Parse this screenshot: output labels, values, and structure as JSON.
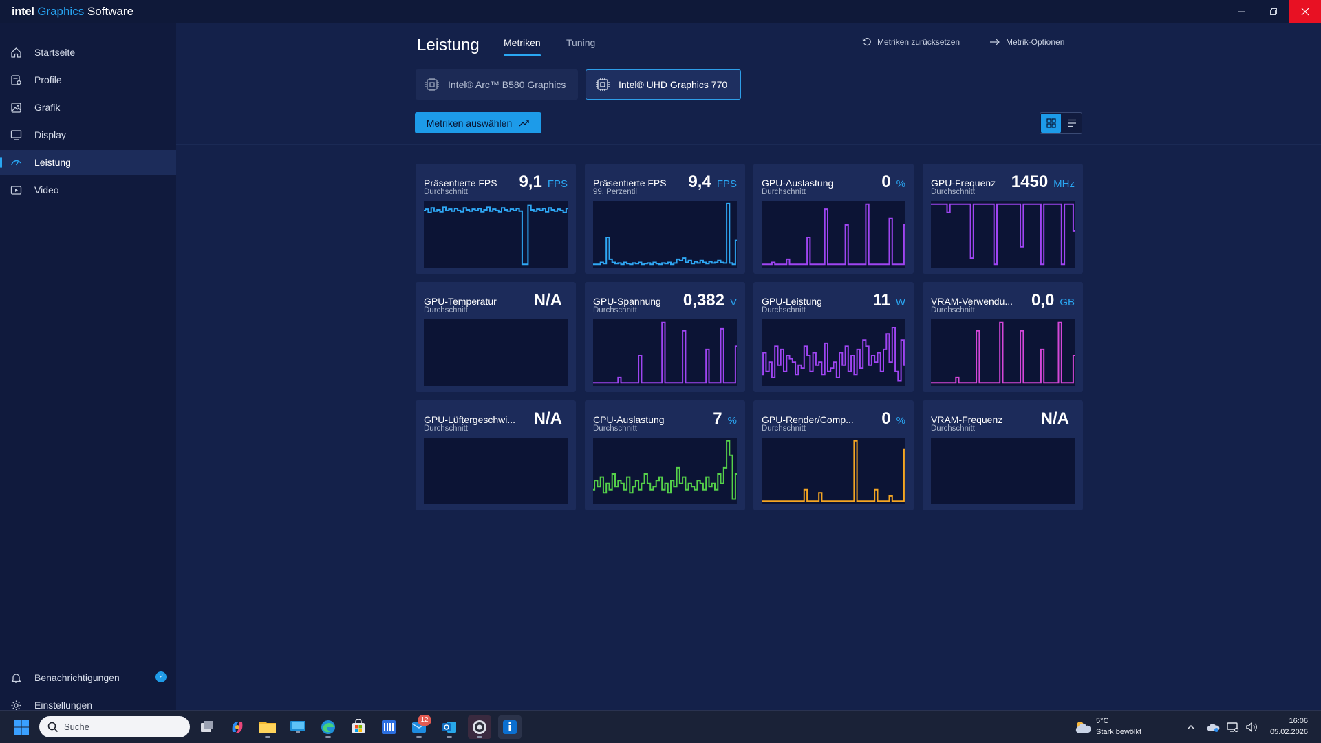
{
  "app": {
    "logo": "intel",
    "title_graphics": "Graphics",
    "title_software": "Software"
  },
  "sidebar": {
    "items": [
      {
        "label": "Startseite",
        "icon": "home-icon"
      },
      {
        "label": "Profile",
        "icon": "profile-icon"
      },
      {
        "label": "Grafik",
        "icon": "graphics-icon"
      },
      {
        "label": "Display",
        "icon": "display-icon"
      },
      {
        "label": "Leistung",
        "icon": "performance-icon",
        "active": true
      },
      {
        "label": "Video",
        "icon": "video-icon"
      }
    ],
    "notifications_label": "Benachrichtigungen",
    "notifications_count": "2",
    "settings_label": "Einstellungen"
  },
  "header": {
    "title": "Leistung",
    "tabs": [
      {
        "label": "Metriken",
        "active": true
      },
      {
        "label": "Tuning"
      }
    ],
    "reset_label": "Metriken zurücksetzen",
    "options_label": "Metrik-Optionen"
  },
  "gpus": [
    {
      "label": "Intel® Arc™ B580 Graphics",
      "selected": false
    },
    {
      "label": "Intel® UHD Graphics 770",
      "selected": true
    }
  ],
  "select_metrics_label": "Metriken auswählen",
  "colors": {
    "accent": "#29a6f2",
    "fps_line": "#2fa8f5",
    "purple_line": "#9f45f2",
    "magenta_line": "#d447d8",
    "green_line": "#55d14a",
    "orange_line": "#f5a623"
  },
  "metrics": [
    {
      "name": "Präsentierte FPS",
      "sub": "Durchschnitt",
      "value": "9,1",
      "unit": "FPS",
      "color": "#2fa8f5",
      "series": [
        0.88,
        0.9,
        0.85,
        0.92,
        0.87,
        0.89,
        0.86,
        0.93,
        0.88,
        0.9,
        0.87,
        0.91,
        0.88,
        0.86,
        0.92,
        0.89,
        0.87,
        0.9,
        0.88,
        0.91,
        0.86,
        0.89,
        0.93,
        0.87,
        0.9,
        0.88,
        0.86,
        0.92,
        0.89,
        0.87,
        0.9,
        0.88,
        0.91,
        0.87,
        0.02,
        0.02,
        0.96,
        0.89,
        0.87,
        0.9,
        0.88,
        0.91,
        0.86,
        0.92,
        0.89,
        0.87,
        0.9,
        0.88,
        0.85,
        0.91
      ]
    },
    {
      "name": "Präsentierte FPS",
      "sub": "99. Perzentil",
      "value": "9,4",
      "unit": "FPS",
      "color": "#2fa8f5",
      "series": [
        0.02,
        0.02,
        0.02,
        0.05,
        0.03,
        0.45,
        0.1,
        0.05,
        0.03,
        0.04,
        0.02,
        0.05,
        0.03,
        0.02,
        0.04,
        0.03,
        0.05,
        0.02,
        0.03,
        0.04,
        0.02,
        0.05,
        0.03,
        0.02,
        0.04,
        0.03,
        0.05,
        0.02,
        0.04,
        0.1,
        0.08,
        0.12,
        0.05,
        0.08,
        0.03,
        0.06,
        0.04,
        0.08,
        0.05,
        0.03,
        0.06,
        0.04,
        0.05,
        0.08,
        0.05,
        0.04,
        0.99,
        0.04,
        0.02,
        0.4
      ]
    },
    {
      "name": "GPU-Auslastung",
      "sub": "Durchschnitt",
      "value": "0",
      "unit": "%",
      "color": "#9f45f2",
      "series": [
        0.02,
        0.02,
        0.02,
        0.02,
        0.05,
        0.02,
        0.02,
        0.02,
        0.02,
        0.1,
        0.02,
        0.02,
        0.02,
        0.02,
        0.02,
        0.02,
        0.45,
        0.02,
        0.02,
        0.02,
        0.02,
        0.02,
        0.9,
        0.02,
        0.02,
        0.02,
        0.02,
        0.02,
        0.02,
        0.65,
        0.02,
        0.02,
        0.02,
        0.02,
        0.02,
        0.02,
        0.98,
        0.02,
        0.02,
        0.02,
        0.02,
        0.02,
        0.02,
        0.02,
        0.75,
        0.02,
        0.02,
        0.02,
        0.02,
        0.65
      ]
    },
    {
      "name": "GPU-Frequenz",
      "sub": "Durchschnitt",
      "value": "1450",
      "unit": "MHz",
      "color": "#9f45f2",
      "series": [
        0.98,
        0.98,
        0.98,
        0.98,
        0.98,
        0.98,
        0.85,
        0.98,
        0.98,
        0.98,
        0.98,
        0.98,
        0.98,
        0.98,
        0.12,
        0.98,
        0.98,
        0.98,
        0.98,
        0.98,
        0.98,
        0.98,
        0.02,
        0.98,
        0.98,
        0.98,
        0.98,
        0.98,
        0.98,
        0.98,
        0.98,
        0.3,
        0.98,
        0.98,
        0.98,
        0.98,
        0.98,
        0.98,
        0.02,
        0.98,
        0.98,
        0.98,
        0.98,
        0.98,
        0.98,
        0.02,
        0.98,
        0.98,
        0.98,
        0.55
      ]
    },
    {
      "name": "GPU-Temperatur",
      "sub": "Durchschnitt",
      "value": "N/A",
      "unit": "",
      "color": "#9f45f2",
      "series": []
    },
    {
      "name": "GPU-Spannung",
      "sub": "Durchschnitt",
      "value": "0,382",
      "unit": "V",
      "color": "#9f45f2",
      "series": [
        0.02,
        0.02,
        0.02,
        0.02,
        0.02,
        0.02,
        0.02,
        0.02,
        0.02,
        0.1,
        0.02,
        0.02,
        0.02,
        0.02,
        0.02,
        0.02,
        0.45,
        0.02,
        0.02,
        0.02,
        0.02,
        0.02,
        0.02,
        0.02,
        0.98,
        0.02,
        0.02,
        0.02,
        0.02,
        0.02,
        0.02,
        0.85,
        0.02,
        0.02,
        0.02,
        0.02,
        0.02,
        0.02,
        0.02,
        0.55,
        0.02,
        0.02,
        0.02,
        0.02,
        0.88,
        0.02,
        0.02,
        0.02,
        0.02,
        0.6
      ]
    },
    {
      "name": "GPU-Leistung",
      "sub": "Durchschnitt",
      "value": "11",
      "unit": "W",
      "color": "#9f45f2",
      "series": [
        0.15,
        0.5,
        0.2,
        0.35,
        0.1,
        0.6,
        0.3,
        0.55,
        0.2,
        0.45,
        0.4,
        0.35,
        0.15,
        0.3,
        0.25,
        0.6,
        0.45,
        0.2,
        0.5,
        0.3,
        0.35,
        0.15,
        0.65,
        0.2,
        0.25,
        0.35,
        0.1,
        0.5,
        0.3,
        0.6,
        0.2,
        0.45,
        0.15,
        0.55,
        0.25,
        0.7,
        0.6,
        0.3,
        0.45,
        0.35,
        0.5,
        0.2,
        0.55,
        0.8,
        0.35,
        0.9,
        0.2,
        0.05,
        0.7,
        0.3
      ]
    },
    {
      "name": "VRAM-Verwendu...",
      "sub": "Durchschnitt",
      "value": "0,0",
      "unit": "GB",
      "color": "#d447d8",
      "series": [
        0.02,
        0.02,
        0.02,
        0.02,
        0.02,
        0.02,
        0.02,
        0.02,
        0.02,
        0.1,
        0.02,
        0.02,
        0.02,
        0.02,
        0.02,
        0.02,
        0.85,
        0.02,
        0.02,
        0.02,
        0.02,
        0.02,
        0.02,
        0.02,
        0.98,
        0.02,
        0.02,
        0.02,
        0.02,
        0.02,
        0.02,
        0.85,
        0.02,
        0.02,
        0.02,
        0.02,
        0.02,
        0.02,
        0.55,
        0.02,
        0.02,
        0.02,
        0.02,
        0.02,
        0.98,
        0.02,
        0.02,
        0.02,
        0.02,
        0.45
      ]
    },
    {
      "name": "GPU-Lüftergeschwi...",
      "sub": "Durchschnitt",
      "value": "N/A",
      "unit": "",
      "color": "#9f45f2",
      "series": []
    },
    {
      "name": "CPU-Auslastung",
      "sub": "Durchschnitt",
      "value": "7",
      "unit": "%",
      "color": "#55d14a",
      "series": [
        0.2,
        0.35,
        0.25,
        0.4,
        0.15,
        0.3,
        0.2,
        0.45,
        0.25,
        0.35,
        0.3,
        0.2,
        0.4,
        0.15,
        0.25,
        0.35,
        0.2,
        0.3,
        0.45,
        0.3,
        0.2,
        0.25,
        0.35,
        0.4,
        0.2,
        0.3,
        0.15,
        0.35,
        0.25,
        0.55,
        0.3,
        0.4,
        0.2,
        0.3,
        0.25,
        0.2,
        0.35,
        0.3,
        0.2,
        0.4,
        0.25,
        0.3,
        0.2,
        0.45,
        0.3,
        0.55,
        0.98,
        0.75,
        0.05,
        0.45
      ]
    },
    {
      "name": "GPU-Render/Comp...",
      "sub": "Durchschnitt",
      "value": "0",
      "unit": "%",
      "color": "#f5a623",
      "series": [
        0.02,
        0.02,
        0.02,
        0.02,
        0.02,
        0.02,
        0.02,
        0.02,
        0.02,
        0.02,
        0.02,
        0.02,
        0.02,
        0.02,
        0.02,
        0.2,
        0.02,
        0.02,
        0.02,
        0.02,
        0.15,
        0.02,
        0.02,
        0.02,
        0.02,
        0.02,
        0.02,
        0.02,
        0.02,
        0.02,
        0.02,
        0.02,
        0.98,
        0.02,
        0.02,
        0.02,
        0.02,
        0.02,
        0.02,
        0.2,
        0.02,
        0.02,
        0.02,
        0.02,
        0.1,
        0.02,
        0.02,
        0.02,
        0.02,
        0.85
      ]
    },
    {
      "name": "VRAM-Frequenz",
      "sub": "Durchschnitt",
      "value": "N/A",
      "unit": "",
      "color": "#9f45f2",
      "series": []
    }
  ],
  "taskbar": {
    "search_placeholder": "Suche",
    "mail_badge": "12",
    "weather_temp": "5°C",
    "weather_desc": "Stark bewölkt",
    "time": "16:06",
    "date": "05.02.2026"
  }
}
